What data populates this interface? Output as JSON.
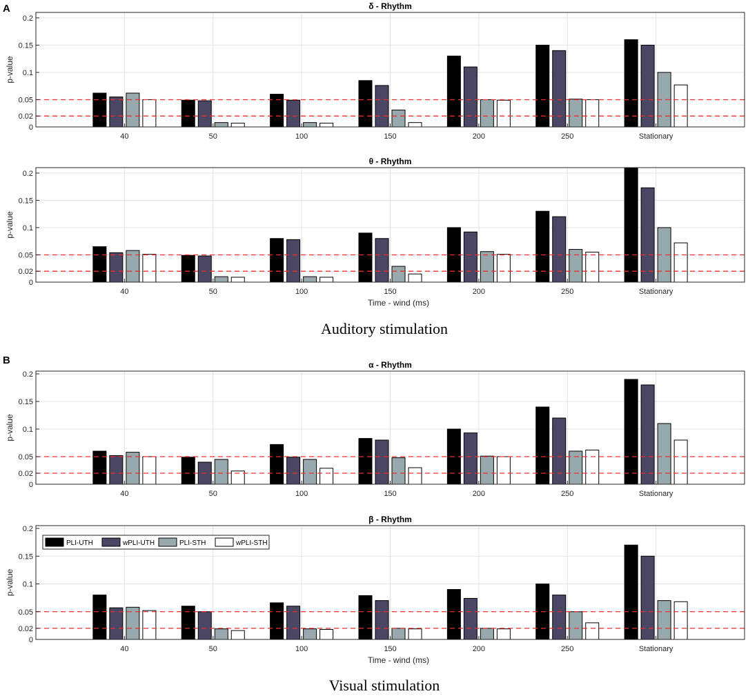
{
  "panels": {
    "A": {
      "letter": "A",
      "caption": "Auditory stimulation"
    },
    "B": {
      "letter": "B",
      "caption": "Visual stimulation"
    }
  },
  "colors": {
    "PLI-UTH": "#000000",
    "wPLI-UTH": "#4a4663",
    "PLI-STH": "#98a9ae",
    "wPLI-STH": "#ffffff",
    "threshold": "#e8302c",
    "grid": "#e3e3e3"
  },
  "legend": [
    "PLI-UTH",
    "wPLI-UTH",
    "PLI-STH",
    "wPLI-STH"
  ],
  "chart_data": [
    {
      "type": "bar",
      "panel": "A",
      "title": "δ - Rhythm",
      "xlabel": "",
      "ylabel": "p-value",
      "ylim": [
        0,
        0.21
      ],
      "yticks": [
        0,
        0.02,
        0.05,
        0.1,
        0.15,
        0.2
      ],
      "ytick_labels": [
        "0",
        "0.02",
        "0.05",
        "0.1",
        "0.15",
        "0.2"
      ],
      "thresholds": [
        0.05,
        0.02
      ],
      "categories": [
        "40",
        "50",
        "100",
        "150",
        "200",
        "250",
        "Stationary"
      ],
      "series": [
        {
          "name": "PLI-UTH",
          "values": [
            0.062,
            0.049,
            0.06,
            0.085,
            0.13,
            0.15,
            0.16
          ]
        },
        {
          "name": "wPLI-UTH",
          "values": [
            0.055,
            0.048,
            0.049,
            0.076,
            0.11,
            0.14,
            0.15
          ]
        },
        {
          "name": "PLI-STH",
          "values": [
            0.062,
            0.008,
            0.008,
            0.031,
            0.05,
            0.051,
            0.1
          ]
        },
        {
          "name": "wPLI-STH",
          "values": [
            0.05,
            0.007,
            0.007,
            0.008,
            0.049,
            0.05,
            0.077
          ]
        }
      ],
      "grid": true,
      "legend": null
    },
    {
      "type": "bar",
      "panel": "A",
      "title": "θ - Rhythm",
      "xlabel": "Time - wind (ms)",
      "ylabel": "p-value",
      "ylim": [
        0,
        0.21
      ],
      "yticks": [
        0,
        0.02,
        0.05,
        0.1,
        0.15,
        0.2
      ],
      "ytick_labels": [
        "0",
        "0.02",
        "0.05",
        "0.1",
        "0.15",
        "0.2"
      ],
      "thresholds": [
        0.05,
        0.02
      ],
      "categories": [
        "40",
        "50",
        "100",
        "150",
        "200",
        "250",
        "Stationary"
      ],
      "series": [
        {
          "name": "PLI-UTH",
          "values": [
            0.065,
            0.049,
            0.08,
            0.09,
            0.1,
            0.13,
            0.21
          ]
        },
        {
          "name": "wPLI-UTH",
          "values": [
            0.054,
            0.048,
            0.078,
            0.08,
            0.092,
            0.12,
            0.173
          ]
        },
        {
          "name": "PLI-STH",
          "values": [
            0.058,
            0.01,
            0.01,
            0.029,
            0.056,
            0.06,
            0.1
          ]
        },
        {
          "name": "wPLI-STH",
          "values": [
            0.051,
            0.009,
            0.009,
            0.015,
            0.051,
            0.055,
            0.072
          ]
        }
      ],
      "grid": true,
      "legend": null
    },
    {
      "type": "bar",
      "panel": "B",
      "title": "α - Rhythm",
      "xlabel": "",
      "ylabel": "p-value",
      "ylim": [
        0,
        0.205
      ],
      "yticks": [
        0,
        0.02,
        0.05,
        0.1,
        0.15,
        0.2
      ],
      "ytick_labels": [
        "0",
        "0.02",
        "0.05",
        "0.1",
        "0.15",
        "0.2"
      ],
      "thresholds": [
        0.05,
        0.02
      ],
      "categories": [
        "40",
        "50",
        "100",
        "150",
        "200",
        "250",
        "Stationary"
      ],
      "series": [
        {
          "name": "PLI-UTH",
          "values": [
            0.06,
            0.049,
            0.072,
            0.083,
            0.1,
            0.14,
            0.19
          ]
        },
        {
          "name": "wPLI-UTH",
          "values": [
            0.052,
            0.04,
            0.049,
            0.08,
            0.093,
            0.12,
            0.18
          ]
        },
        {
          "name": "PLI-STH",
          "values": [
            0.058,
            0.045,
            0.045,
            0.048,
            0.051,
            0.06,
            0.11
          ]
        },
        {
          "name": "wPLI-STH",
          "values": [
            0.05,
            0.024,
            0.029,
            0.03,
            0.05,
            0.062,
            0.08
          ]
        }
      ],
      "grid": true,
      "legend": null
    },
    {
      "type": "bar",
      "panel": "B",
      "title": "β - Rhythm",
      "xlabel": "Time - wind (ms)",
      "ylabel": "p-value",
      "ylim": [
        0,
        0.205
      ],
      "yticks": [
        0,
        0.02,
        0.05,
        0.1,
        0.15,
        0.2
      ],
      "ytick_labels": [
        "0",
        "0.02",
        "0.05",
        "0.1",
        "0.15",
        "0.2"
      ],
      "thresholds": [
        0.05,
        0.02
      ],
      "categories": [
        "40",
        "50",
        "100",
        "150",
        "200",
        "250",
        "Stationary"
      ],
      "series": [
        {
          "name": "PLI-UTH",
          "values": [
            0.08,
            0.06,
            0.066,
            0.079,
            0.09,
            0.1,
            0.17
          ]
        },
        {
          "name": "wPLI-UTH",
          "values": [
            0.057,
            0.05,
            0.06,
            0.07,
            0.074,
            0.08,
            0.15
          ]
        },
        {
          "name": "PLI-STH",
          "values": [
            0.058,
            0.019,
            0.019,
            0.02,
            0.02,
            0.05,
            0.07
          ]
        },
        {
          "name": "wPLI-STH",
          "values": [
            0.052,
            0.016,
            0.018,
            0.019,
            0.019,
            0.03,
            0.068
          ]
        }
      ],
      "grid": true,
      "legend": "top-left"
    }
  ]
}
